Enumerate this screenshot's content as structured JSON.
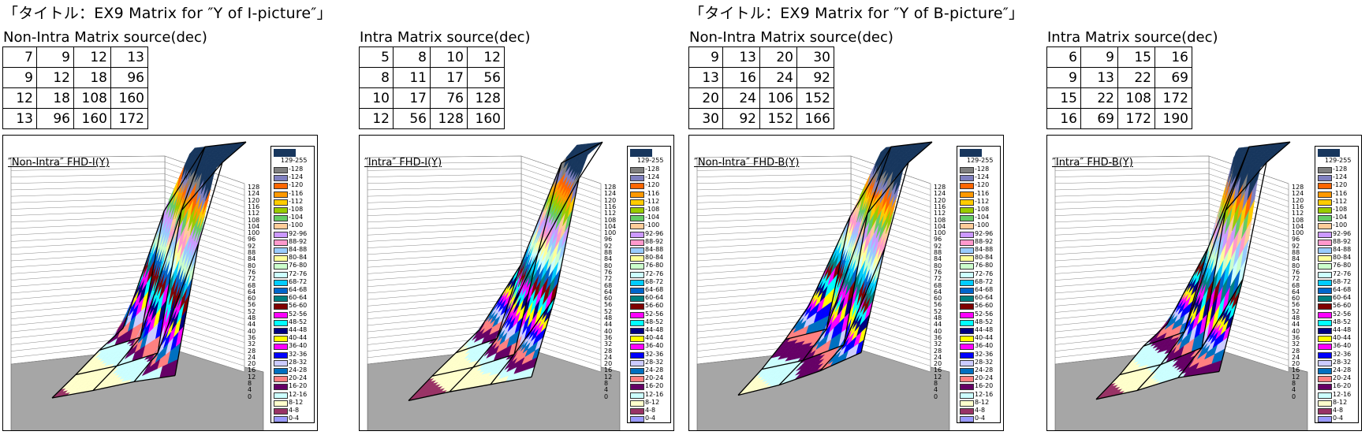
{
  "sections": [
    {
      "title": "「タイトル：EX9 Matrix for ″Y of I-picture″」"
    },
    {
      "title": "「タイトル：EX9 Matrix for ″Y of B-picture″」"
    }
  ],
  "panels": [
    {
      "caption": "Non-Intra Matrix source(dec)",
      "matrix": [
        [
          7,
          9,
          12,
          13
        ],
        [
          9,
          12,
          18,
          96
        ],
        [
          12,
          18,
          108,
          160
        ],
        [
          13,
          96,
          160,
          172
        ]
      ],
      "chart_title": "″Non-Intra″ FHD-I(Y)"
    },
    {
      "caption": "Intra Matrix source(dec)",
      "matrix": [
        [
          5,
          8,
          10,
          12
        ],
        [
          8,
          11,
          17,
          56
        ],
        [
          10,
          17,
          76,
          128
        ],
        [
          12,
          56,
          128,
          160
        ]
      ],
      "chart_title": "″Intra″ FHD-I(Y)"
    },
    {
      "caption": "Non-Intra Matrix source(dec)",
      "matrix": [
        [
          9,
          13,
          20,
          30
        ],
        [
          13,
          16,
          24,
          92
        ],
        [
          20,
          24,
          106,
          152
        ],
        [
          30,
          92,
          152,
          166
        ]
      ],
      "chart_title": "″Non-Intra″ FHD-B(Y)"
    },
    {
      "caption": "Intra Matrix source(dec)",
      "matrix": [
        [
          6,
          9,
          15,
          16
        ],
        [
          9,
          13,
          22,
          69
        ],
        [
          15,
          22,
          108,
          172
        ],
        [
          16,
          69,
          172,
          190
        ]
      ],
      "chart_title": "″Intra″ FHD-B(Y)"
    }
  ],
  "legend": {
    "top_label": "129-255",
    "top_color": "#17365d",
    "entries": [
      {
        "label": "-128",
        "color": "#808080"
      },
      {
        "label": "-124",
        "color": "#8080c0"
      },
      {
        "label": "-120",
        "color": "#ff6600"
      },
      {
        "label": "-116",
        "color": "#ff9900"
      },
      {
        "label": "-112",
        "color": "#ffcc00"
      },
      {
        "label": "-108",
        "color": "#99cc00"
      },
      {
        "label": "-104",
        "color": "#66cc66"
      },
      {
        "label": "-100",
        "color": "#ffcc99"
      },
      {
        "label": "92-96",
        "color": "#cc99ff"
      },
      {
        "label": "88-92",
        "color": "#ff99cc"
      },
      {
        "label": "84-88",
        "color": "#99ccff"
      },
      {
        "label": "80-84",
        "color": "#ffff99"
      },
      {
        "label": "76-80",
        "color": "#ccffcc"
      },
      {
        "label": "72-76",
        "color": "#ccffff"
      },
      {
        "label": "68-72",
        "color": "#00ccff"
      },
      {
        "label": "64-68",
        "color": "#0066cc"
      },
      {
        "label": "60-64",
        "color": "#008080"
      },
      {
        "label": "56-60",
        "color": "#800000"
      },
      {
        "label": "52-56",
        "color": "#ff00ff"
      },
      {
        "label": "48-52",
        "color": "#00ffff"
      },
      {
        "label": "44-48",
        "color": "#000080"
      },
      {
        "label": "40-44",
        "color": "#ffff00"
      },
      {
        "label": "36-40",
        "color": "#ff00ff"
      },
      {
        "label": "32-36",
        "color": "#0000ff"
      },
      {
        "label": "28-32",
        "color": "#ccccff"
      },
      {
        "label": "24-28",
        "color": "#0070c0"
      },
      {
        "label": "20-24",
        "color": "#ff8080"
      },
      {
        "label": "16-20",
        "color": "#660066"
      },
      {
        "label": "12-16",
        "color": "#ccffff"
      },
      {
        "label": "8-12",
        "color": "#ffffcc"
      },
      {
        "label": "4-8",
        "color": "#993366"
      },
      {
        "label": "0-4",
        "color": "#9999ff"
      }
    ]
  },
  "z_ticks": [
    "128",
    "124",
    "120",
    "116",
    "112",
    "108",
    "104",
    "100",
    "96",
    "92",
    "88",
    "84",
    "80",
    "76",
    "72",
    "68",
    "64",
    "60",
    "56",
    "52",
    "48",
    "44",
    "40",
    "36",
    "32",
    "28",
    "24",
    "20",
    "16",
    "12",
    "8",
    "4",
    "0"
  ],
  "chart_data": [
    {
      "type": "surface",
      "title": "″Non-Intra″ FHD-I(Y)",
      "z": [
        [
          7,
          9,
          12,
          13
        ],
        [
          9,
          12,
          18,
          96
        ],
        [
          12,
          18,
          108,
          160
        ],
        [
          13,
          96,
          160,
          172
        ]
      ],
      "zlim": [
        0,
        128
      ]
    },
    {
      "type": "surface",
      "title": "″Intra″ FHD-I(Y)",
      "z": [
        [
          5,
          8,
          10,
          12
        ],
        [
          8,
          11,
          17,
          56
        ],
        [
          10,
          17,
          76,
          128
        ],
        [
          12,
          56,
          128,
          160
        ]
      ],
      "zlim": [
        0,
        128
      ]
    },
    {
      "type": "surface",
      "title": "″Non-Intra″ FHD-B(Y)",
      "z": [
        [
          9,
          13,
          20,
          30
        ],
        [
          13,
          16,
          24,
          92
        ],
        [
          20,
          24,
          106,
          152
        ],
        [
          30,
          92,
          152,
          166
        ]
      ],
      "zlim": [
        0,
        128
      ]
    },
    {
      "type": "surface",
      "title": "″Intra″ FHD-B(Y)",
      "z": [
        [
          6,
          9,
          15,
          16
        ],
        [
          9,
          13,
          22,
          69
        ],
        [
          15,
          22,
          108,
          172
        ],
        [
          16,
          69,
          172,
          190
        ]
      ],
      "zlim": [
        0,
        128
      ]
    }
  ]
}
